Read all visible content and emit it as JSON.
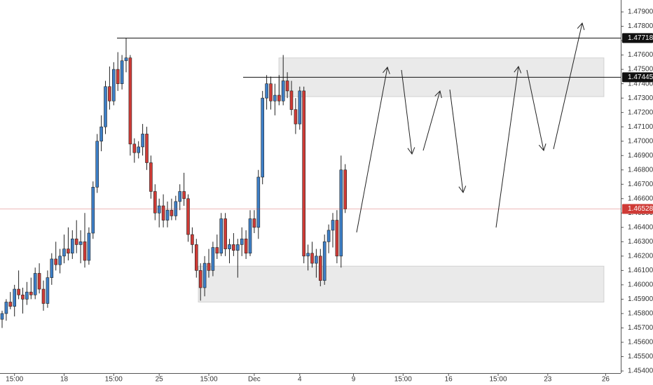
{
  "chart_data": {
    "type": "candlestick",
    "ylim": [
      1.454,
      1.47983
    ],
    "yticks": [
      {
        "value": 1.454,
        "label": "1.45400"
      },
      {
        "value": 1.455,
        "label": "1.45500"
      },
      {
        "value": 1.456,
        "label": "1.45600"
      },
      {
        "value": 1.457,
        "label": "1.45700"
      },
      {
        "value": 1.458,
        "label": "1.45800"
      },
      {
        "value": 1.459,
        "label": "1.45900"
      },
      {
        "value": 1.46,
        "label": "1.46000"
      },
      {
        "value": 1.461,
        "label": "1.46100"
      },
      {
        "value": 1.462,
        "label": "1.46200"
      },
      {
        "value": 1.463,
        "label": "1.46300"
      },
      {
        "value": 1.464,
        "label": "1.46400"
      },
      {
        "value": 1.465,
        "label": "1.46500"
      },
      {
        "value": 1.466,
        "label": "1.46600"
      },
      {
        "value": 1.467,
        "label": "1.46700"
      },
      {
        "value": 1.468,
        "label": "1.46800"
      },
      {
        "value": 1.469,
        "label": "1.46900"
      },
      {
        "value": 1.47,
        "label": "1.47000"
      },
      {
        "value": 1.471,
        "label": "1.47100"
      },
      {
        "value": 1.472,
        "label": "1.47200"
      },
      {
        "value": 1.473,
        "label": "1.47300"
      },
      {
        "value": 1.474,
        "label": "1.47400"
      },
      {
        "value": 1.475,
        "label": "1.47500"
      },
      {
        "value": 1.476,
        "label": "1.47600"
      },
      {
        "value": 1.477,
        "label": "1.47700"
      },
      {
        "value": 1.478,
        "label": "1.47800"
      },
      {
        "value": 1.479,
        "label": "1.47900"
      }
    ],
    "xticks": [
      {
        "value": 3,
        "label": "15:00"
      },
      {
        "value": 15,
        "label": "18"
      },
      {
        "value": 27,
        "label": "15:00"
      },
      {
        "value": 38,
        "label": "25"
      },
      {
        "value": 50,
        "label": "15:00"
      },
      {
        "value": 61,
        "label": "Dec"
      },
      {
        "value": 72,
        "label": "4"
      },
      {
        "value": 85,
        "label": "9"
      },
      {
        "value": 97,
        "label": "15:00"
      },
      {
        "value": 108,
        "label": "16"
      },
      {
        "value": 120,
        "label": "15:00"
      },
      {
        "value": 132,
        "label": "23"
      },
      {
        "value": 146,
        "label": "26"
      }
    ],
    "up_color": "#3d7fc7",
    "down_color": "#cf3b36",
    "levels": [
      1.47718,
      1.47445
    ],
    "last_price": 1.46528,
    "zones": [
      [
        1.4731,
        1.4758
      ],
      [
        1.4588,
        1.4613
      ]
    ],
    "candles": [
      [
        1.4576,
        1.4582,
        1.457,
        1.458
      ],
      [
        1.458,
        1.459,
        1.4575,
        1.4588
      ],
      [
        1.4588,
        1.4595,
        1.4583,
        1.4585
      ],
      [
        1.4585,
        1.46,
        1.4578,
        1.4597
      ],
      [
        1.4597,
        1.461,
        1.459,
        1.4593
      ],
      [
        1.4593,
        1.4598,
        1.458,
        1.459
      ],
      [
        1.459,
        1.4602,
        1.4586,
        1.4595
      ],
      [
        1.4595,
        1.4605,
        1.459,
        1.4593
      ],
      [
        1.4593,
        1.4612,
        1.459,
        1.4608
      ],
      [
        1.4608,
        1.4615,
        1.4594,
        1.4597
      ],
      [
        1.4597,
        1.4603,
        1.4582,
        1.4587
      ],
      [
        1.4587,
        1.461,
        1.4584,
        1.4605
      ],
      [
        1.4605,
        1.4622,
        1.46,
        1.4618
      ],
      [
        1.4618,
        1.463,
        1.461,
        1.4614
      ],
      [
        1.4614,
        1.4625,
        1.4608,
        1.462
      ],
      [
        1.462,
        1.4635,
        1.4615,
        1.4625
      ],
      [
        1.4625,
        1.464,
        1.4617,
        1.4622
      ],
      [
        1.4622,
        1.4638,
        1.4618,
        1.4632
      ],
      [
        1.4632,
        1.4645,
        1.4622,
        1.4628
      ],
      [
        1.4628,
        1.4638,
        1.4615,
        1.463
      ],
      [
        1.463,
        1.465,
        1.4612,
        1.4617
      ],
      [
        1.4617,
        1.464,
        1.4614,
        1.4636
      ],
      [
        1.4636,
        1.4672,
        1.4632,
        1.4668
      ],
      [
        1.4668,
        1.4705,
        1.4664,
        1.47
      ],
      [
        1.47,
        1.4718,
        1.4693,
        1.471
      ],
      [
        1.471,
        1.4742,
        1.4705,
        1.4738
      ],
      [
        1.4738,
        1.4752,
        1.4722,
        1.4728
      ],
      [
        1.4728,
        1.4755,
        1.4725,
        1.475
      ],
      [
        1.475,
        1.4762,
        1.4735,
        1.474
      ],
      [
        1.474,
        1.476,
        1.4736,
        1.4756
      ],
      [
        1.4756,
        1.4772,
        1.4748,
        1.4758
      ],
      [
        1.4758,
        1.476,
        1.469,
        1.4698
      ],
      [
        1.4698,
        1.4702,
        1.4685,
        1.4692
      ],
      [
        1.4692,
        1.47,
        1.4688,
        1.4696
      ],
      [
        1.4696,
        1.4712,
        1.469,
        1.4705
      ],
      [
        1.4705,
        1.471,
        1.468,
        1.4685
      ],
      [
        1.4685,
        1.469,
        1.466,
        1.4665
      ],
      [
        1.4665,
        1.467,
        1.4645,
        1.465
      ],
      [
        1.465,
        1.466,
        1.464,
        1.4655
      ],
      [
        1.4655,
        1.4663,
        1.464,
        1.4645
      ],
      [
        1.4645,
        1.4658,
        1.464,
        1.4652
      ],
      [
        1.4652,
        1.466,
        1.4645,
        1.4648
      ],
      [
        1.4648,
        1.4662,
        1.4645,
        1.4658
      ],
      [
        1.4658,
        1.467,
        1.4652,
        1.4665
      ],
      [
        1.4665,
        1.4678,
        1.4655,
        1.466
      ],
      [
        1.466,
        1.4663,
        1.463,
        1.4635
      ],
      [
        1.4635,
        1.464,
        1.4622,
        1.4628
      ],
      [
        1.4628,
        1.4632,
        1.4605,
        1.461
      ],
      [
        1.461,
        1.4615,
        1.4589,
        1.4598
      ],
      [
        1.4598,
        1.462,
        1.4592,
        1.4615
      ],
      [
        1.4615,
        1.4625,
        1.4605,
        1.461
      ],
      [
        1.461,
        1.463,
        1.4606,
        1.4626
      ],
      [
        1.4626,
        1.4635,
        1.4618,
        1.4622
      ],
      [
        1.4622,
        1.465,
        1.462,
        1.4646
      ],
      [
        1.4646,
        1.465,
        1.462,
        1.4625
      ],
      [
        1.4625,
        1.4632,
        1.4615,
        1.4628
      ],
      [
        1.4628,
        1.4636,
        1.462,
        1.4624
      ],
      [
        1.4624,
        1.4632,
        1.4605,
        1.4628
      ],
      [
        1.4628,
        1.464,
        1.462,
        1.4632
      ],
      [
        1.4632,
        1.4638,
        1.4618,
        1.4622
      ],
      [
        1.4622,
        1.4652,
        1.462,
        1.4646
      ],
      [
        1.4646,
        1.4652,
        1.4636,
        1.464
      ],
      [
        1.464,
        1.468,
        1.4632,
        1.4675
      ],
      [
        1.4675,
        1.4735,
        1.467,
        1.473
      ],
      [
        1.473,
        1.4746,
        1.4722,
        1.474
      ],
      [
        1.474,
        1.4745,
        1.4722,
        1.4728
      ],
      [
        1.4728,
        1.474,
        1.4718,
        1.4732
      ],
      [
        1.4732,
        1.4746,
        1.4725,
        1.4728
      ],
      [
        1.4728,
        1.476,
        1.4725,
        1.4742
      ],
      [
        1.4742,
        1.4748,
        1.473,
        1.4735
      ],
      [
        1.4735,
        1.4742,
        1.4718,
        1.4722
      ],
      [
        1.4722,
        1.473,
        1.4705,
        1.4712
      ],
      [
        1.4712,
        1.4738,
        1.4708,
        1.4735
      ],
      [
        1.4735,
        1.4738,
        1.4615,
        1.462
      ],
      [
        1.462,
        1.4628,
        1.461,
        1.4622
      ],
      [
        1.4622,
        1.463,
        1.4612,
        1.4615
      ],
      [
        1.4615,
        1.4625,
        1.4605,
        1.462
      ],
      [
        1.462,
        1.4625,
        1.4599,
        1.4603
      ],
      [
        1.4603,
        1.4635,
        1.46,
        1.463
      ],
      [
        1.463,
        1.4642,
        1.4622,
        1.4638
      ],
      [
        1.4638,
        1.465,
        1.4626,
        1.4645
      ],
      [
        1.4645,
        1.4652,
        1.4615,
        1.462
      ],
      [
        1.462,
        1.469,
        1.4612,
        1.468
      ],
      [
        1.468,
        1.4684,
        1.465,
        1.46528
      ]
    ]
  }
}
